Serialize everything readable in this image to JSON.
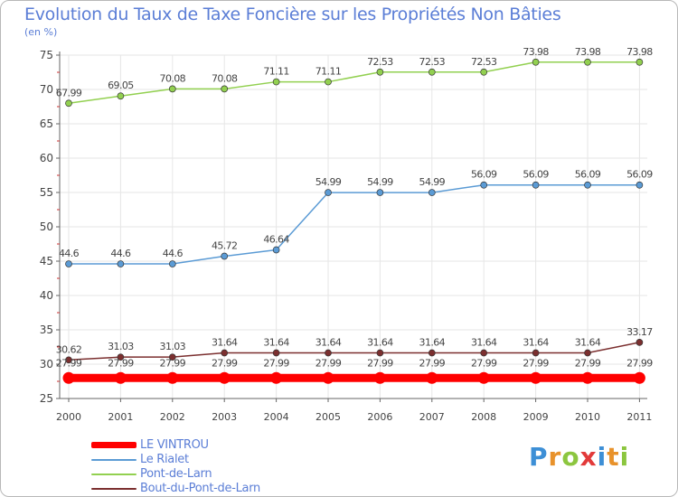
{
  "title": "Evolution du Taux de Taxe Foncière sur les Propriétés Non Bâties",
  "subtitle": "(en %)",
  "logo": {
    "letters": [
      "P",
      "r",
      "o",
      "x",
      "i",
      "t",
      "i"
    ],
    "colors": [
      "#3d8fd6",
      "#e8922b",
      "#8cc63f",
      "#e23a3a",
      "#3d8fd6",
      "#e8922b",
      "#8cc63f"
    ]
  },
  "chart_data": {
    "type": "line",
    "title": "Evolution du Taux de Taxe Foncière sur les Propriétés Non Bâties",
    "ylabel": "(en %)",
    "xlabel": "",
    "ylim": [
      25,
      75
    ],
    "yticks": [
      25,
      30,
      35,
      40,
      45,
      50,
      55,
      60,
      65,
      70,
      75
    ],
    "categories": [
      "2000",
      "2001",
      "2002",
      "2003",
      "2004",
      "2005",
      "2006",
      "2007",
      "2008",
      "2009",
      "2010",
      "2011"
    ],
    "grid": true,
    "series": [
      {
        "name": "LE VINTROU",
        "color": "#ff0000",
        "values": [
          27.99,
          27.99,
          27.99,
          27.99,
          27.99,
          27.99,
          27.99,
          27.99,
          27.99,
          27.99,
          27.99,
          27.99
        ],
        "labels": [
          "27.99",
          "27.99",
          "27.99",
          "27.99",
          "27.99",
          "27.99",
          "27.99",
          "27.99",
          "27.99",
          "27.99",
          "27.99",
          "27.99"
        ]
      },
      {
        "name": "Le Rialet",
        "color": "#5b9bd5",
        "values": [
          44.6,
          44.6,
          44.6,
          45.72,
          46.64,
          54.99,
          54.99,
          54.99,
          56.09,
          56.09,
          56.09,
          56.09
        ],
        "labels": [
          "44.6",
          "44.6",
          "44.6",
          "45.72",
          "46.64",
          "54.99",
          "54.99",
          "54.99",
          "56.09",
          "56.09",
          "56.09",
          "56.09"
        ]
      },
      {
        "name": "Pont-de-Larn",
        "color": "#92d050",
        "values": [
          67.99,
          69.05,
          70.08,
          70.08,
          71.11,
          71.11,
          72.53,
          72.53,
          72.53,
          73.98,
          73.98,
          73.98
        ],
        "labels": [
          "67.99",
          "69.05",
          "70.08",
          "70.08",
          "71.11",
          "71.11",
          "72.53",
          "72.53",
          "72.53",
          "73.98",
          "73.98",
          "73.98"
        ]
      },
      {
        "name": "Bout-du-Pont-de-Larn",
        "color": "#7b2f2f",
        "values": [
          30.62,
          31.03,
          31.03,
          31.64,
          31.64,
          31.64,
          31.64,
          31.64,
          31.64,
          31.64,
          31.64,
          33.17
        ],
        "labels": [
          "30.62",
          "31.03",
          "31.03",
          "31.64",
          "31.64",
          "31.64",
          "31.64",
          "31.64",
          "31.64",
          "31.64",
          "31.64",
          "33.17"
        ]
      }
    ]
  }
}
